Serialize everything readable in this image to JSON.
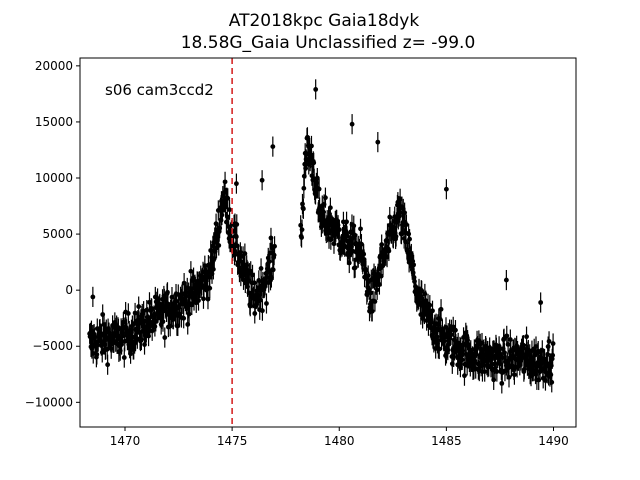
{
  "chart_data": {
    "type": "scatter",
    "title": "AT2018kpc  Gaia18dyk",
    "subtitle": "18.58G_Gaia Unclassified z= -99.0",
    "annotation": "s06 cam3ccd2",
    "xlabel": "",
    "ylabel": "",
    "xlim": [
      1467.9,
      1491.05
    ],
    "ylim": [
      -12200,
      20700
    ],
    "xticks": [
      1470,
      1475,
      1480,
      1485,
      1490
    ],
    "yticks": [
      -10000,
      -5000,
      0,
      5000,
      10000,
      15000,
      20000
    ],
    "xtick_labels": [
      "1470",
      "1475",
      "1480",
      "1485",
      "1490"
    ],
    "ytick_labels": [
      "−10000",
      "−5000",
      "0",
      "5000",
      "10000",
      "15000",
      "20000"
    ],
    "vline": {
      "x": 1475.0,
      "color": "#d62728",
      "style": "dashed"
    },
    "marker_color": "#000000",
    "errorbars": true,
    "grid": false,
    "segments": [
      {
        "x": [
          1468.35,
          1469.0,
          1469.6,
          1470.5,
          1471.4,
          1472.3,
          1473.2,
          1474.0,
          1474.6,
          1475.0,
          1475.4,
          1476.0,
          1476.6,
          1477.0
        ],
        "y": [
          -4800,
          -4200,
          -4400,
          -3600,
          -2500,
          -1400,
          -400,
          1600,
          8500,
          5000,
          2500,
          -800,
          1000,
          3500
        ]
      },
      {
        "x": [
          1478.2,
          1478.5,
          1478.8,
          1479.1,
          1479.5,
          1480.0,
          1480.5,
          1481.0,
          1481.5,
          1482.0,
          1482.4,
          1482.8,
          1483.2,
          1483.7,
          1484.3,
          1485.0,
          1485.8,
          1486.7,
          1487.6,
          1488.5,
          1489.3,
          1490.0
        ],
        "y": [
          5000,
          13000,
          11000,
          6500,
          6000,
          5000,
          4000,
          3500,
          -1000,
          2500,
          4500,
          7000,
          4000,
          -1000,
          -3000,
          -4500,
          -5500,
          -6000,
          -6200,
          -6000,
          -6500,
          -6000
        ]
      }
    ],
    "series": [
      {
        "x": [
          1468.5,
          1475.2,
          1476.9,
          1478.9,
          1480.6,
          1481.8,
          1485.0,
          1487.8,
          1489.4,
          1476.4
        ],
        "y": [
          -600,
          9500,
          12800,
          17900,
          14800,
          13200,
          9000,
          900,
          -1100,
          9800
        ]
      }
    ],
    "scatter_sd": 1300,
    "errorbar_halfwidth": 900
  }
}
